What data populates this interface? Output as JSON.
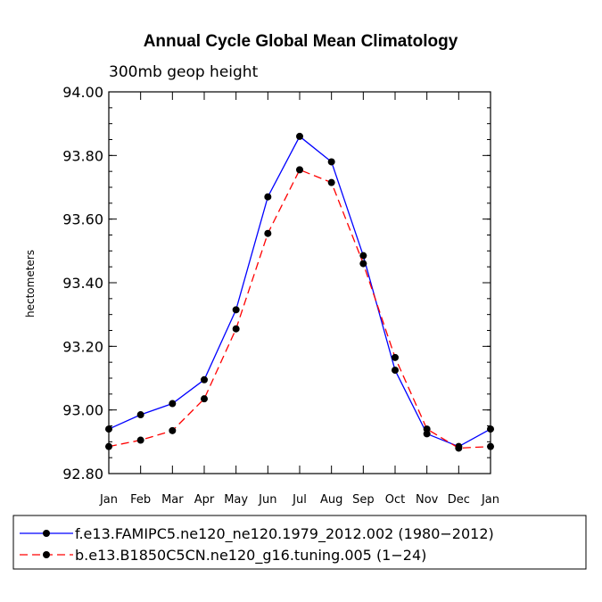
{
  "chart_data": {
    "type": "line",
    "title": "Annual Cycle Global Mean Climatology",
    "subtitle": "300mb geop height",
    "xlabel": "",
    "ylabel": "hectometers",
    "categories": [
      "Jan",
      "Feb",
      "Mar",
      "Apr",
      "May",
      "Jun",
      "Jul",
      "Aug",
      "Sep",
      "Oct",
      "Nov",
      "Dec",
      "Jan"
    ],
    "ylim": [
      92.8,
      94.0
    ],
    "yticks": [
      "92.80",
      "93.00",
      "93.20",
      "93.40",
      "93.60",
      "93.80",
      "94.00"
    ],
    "ytick_values": [
      92.8,
      93.0,
      93.2,
      93.4,
      93.6,
      93.8,
      94.0
    ],
    "series": [
      {
        "name": "f.e13.FAMIPC5.ne120_ne120.1979_2012.002 (1980−2012)",
        "color": "#0000ff",
        "dash": "solid",
        "values": [
          92.94,
          92.985,
          93.02,
          93.095,
          93.315,
          93.67,
          93.86,
          93.78,
          93.485,
          93.125,
          92.925,
          92.885,
          92.94
        ]
      },
      {
        "name": "b.e13.B1850C5CN.ne120_g16.tuning.005 (1−24)",
        "color": "#ff0000",
        "dash": "dashed",
        "values": [
          92.885,
          92.905,
          92.935,
          93.035,
          93.255,
          93.555,
          93.755,
          93.715,
          93.46,
          93.165,
          92.94,
          92.88,
          92.885
        ]
      }
    ],
    "legend_position": "bottom"
  }
}
